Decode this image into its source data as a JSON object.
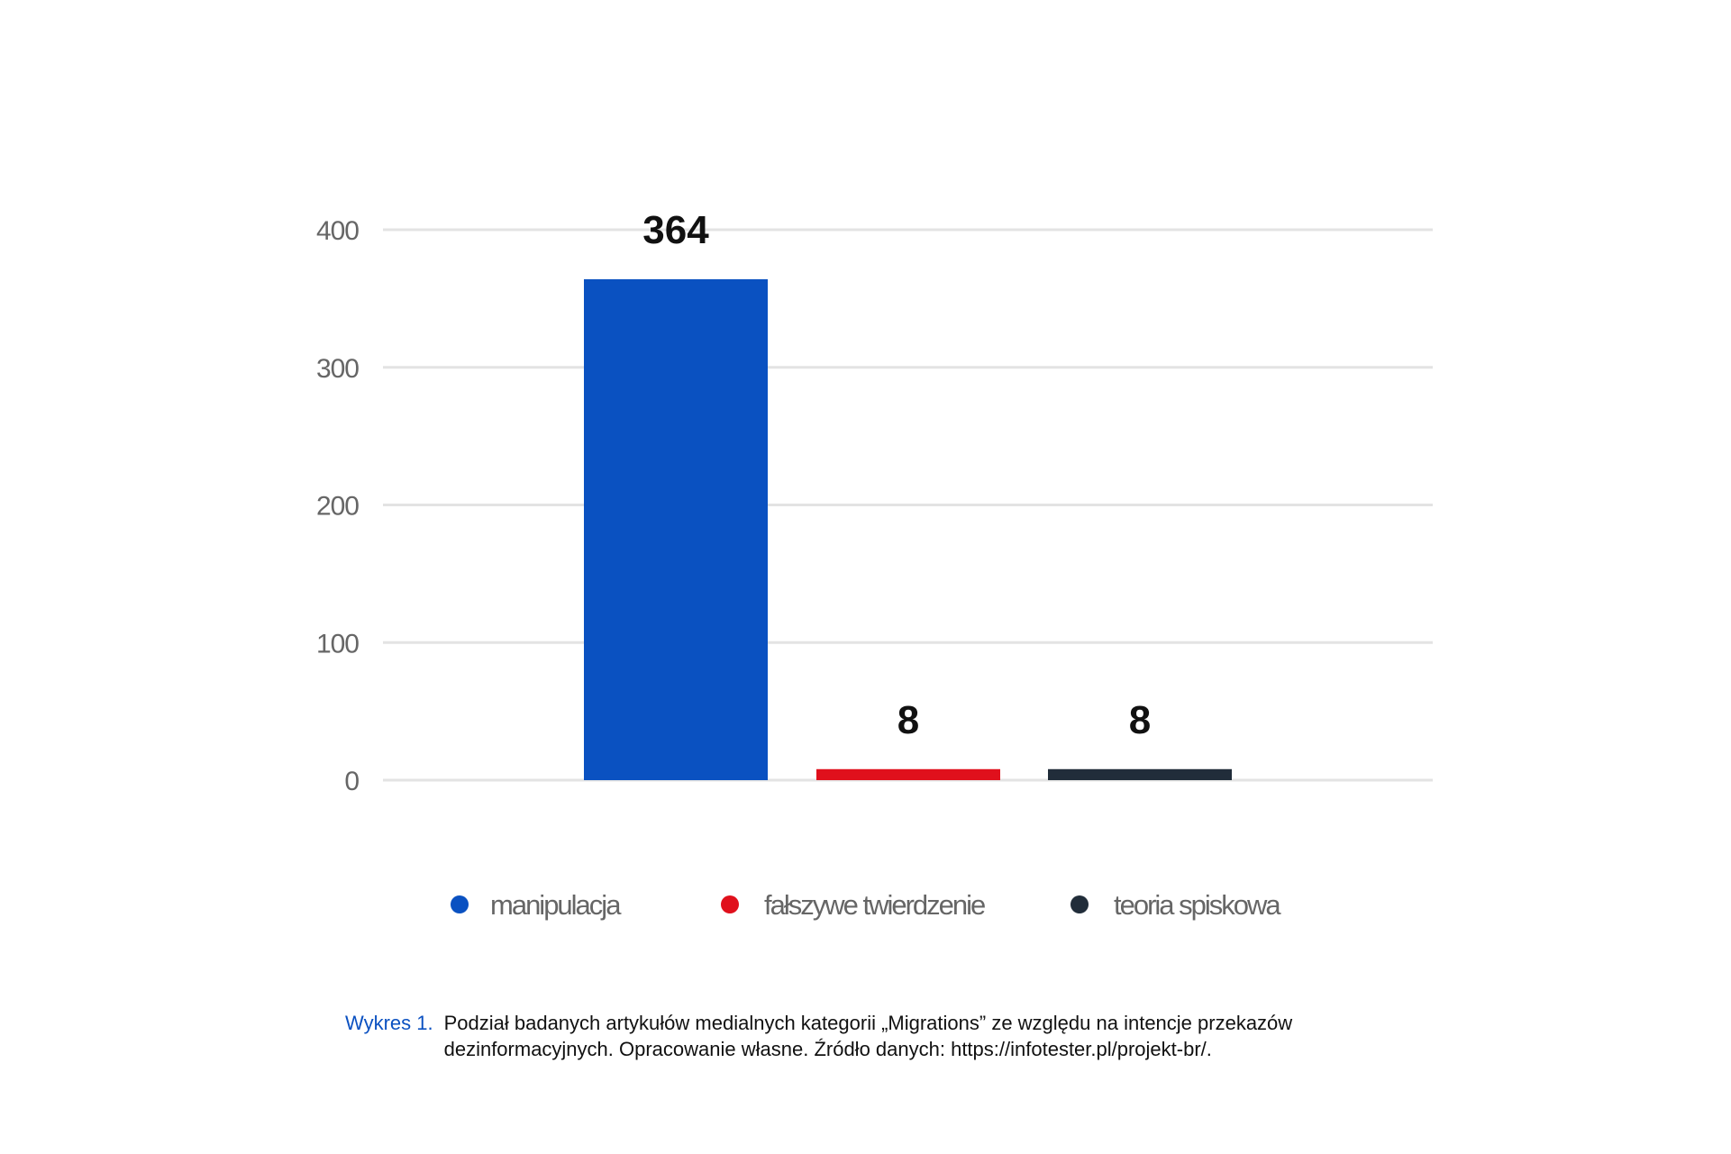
{
  "chart_data": {
    "type": "bar",
    "categories": [
      "manipulacja",
      "fałszywe twierdzenie",
      "teoria spiskowa"
    ],
    "values": [
      364,
      8,
      8
    ],
    "data_labels": [
      "364",
      "8",
      "8"
    ],
    "colors": [
      "#0a51c1",
      "#e0101c",
      "#212d3a"
    ],
    "ylim": [
      0,
      400
    ],
    "yticks": [
      0,
      100,
      200,
      300,
      400
    ],
    "ytick_labels": [
      "0",
      "100",
      "200",
      "300",
      "400"
    ],
    "grid": true,
    "legend": {
      "position": "bottom",
      "entries": [
        "manipulacja",
        "fałszywe twierdzenie",
        "teoria spiskowa"
      ]
    }
  },
  "caption": {
    "prefix": "Wykres 1.",
    "text": "Podział badanych artykułów medialnych kategorii „Migrations” ze względu na intencje przekazów dezinformacyjnych. Opracowanie własne. Źródło danych: https://infotester.pl/projekt-br/."
  }
}
